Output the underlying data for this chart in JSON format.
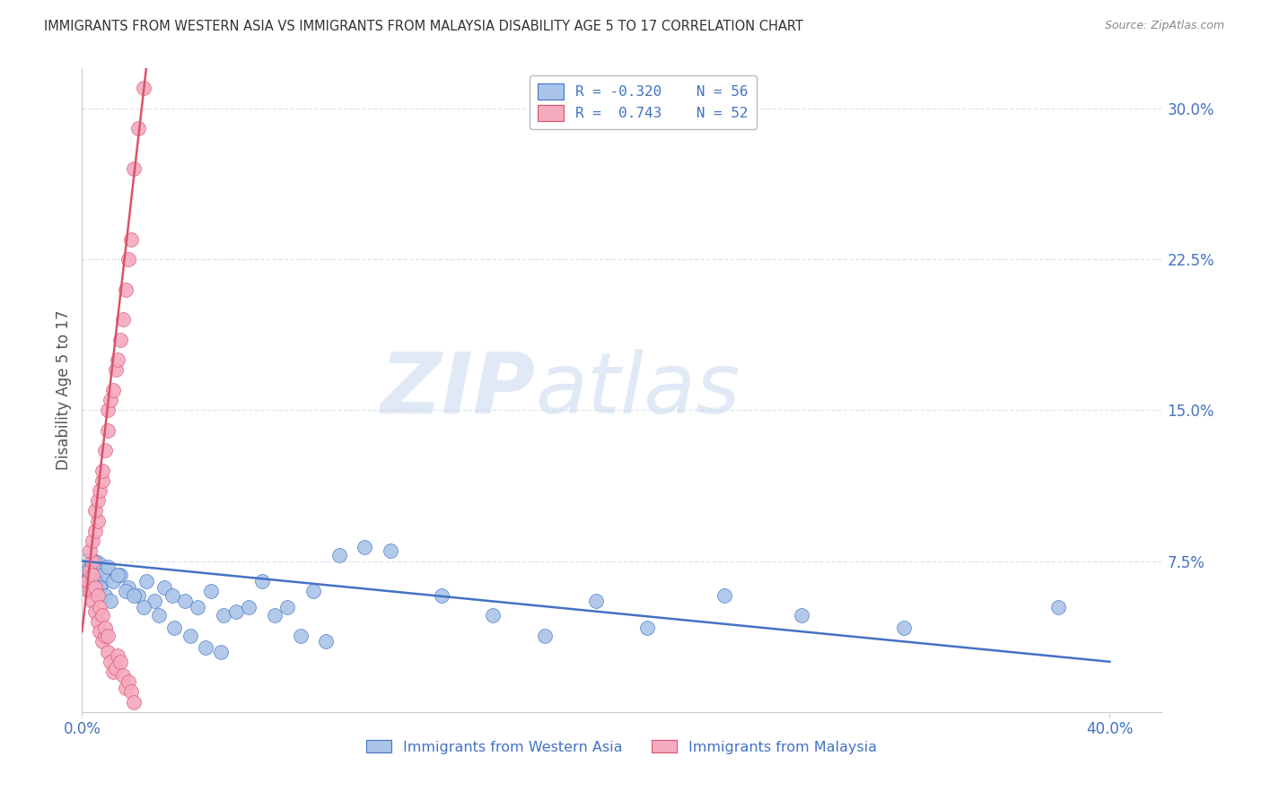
{
  "title": "IMMIGRANTS FROM WESTERN ASIA VS IMMIGRANTS FROM MALAYSIA DISABILITY AGE 5 TO 17 CORRELATION CHART",
  "source": "Source: ZipAtlas.com",
  "ylabel": "Disability Age 5 to 17",
  "ylabel_right_ticks": [
    "30.0%",
    "22.5%",
    "15.0%",
    "7.5%"
  ],
  "ylabel_right_vals": [
    0.3,
    0.225,
    0.15,
    0.075
  ],
  "xlim": [
    0.0,
    0.42
  ],
  "ylim": [
    0.0,
    0.32
  ],
  "legend_blue_R": "-0.320",
  "legend_blue_N": "56",
  "legend_pink_R": "0.743",
  "legend_pink_N": "52",
  "blue_color": "#aac4e8",
  "pink_color": "#f5aabf",
  "blue_line_color": "#4472c4",
  "pink_line_color": "#d9536a",
  "watermark_zip": "ZIP",
  "watermark_atlas": "atlas",
  "grid_color": "#dde5f0",
  "right_tick_color": "#4472c4",
  "title_color": "#333333",
  "blue_scatter_x": [
    0.002,
    0.003,
    0.004,
    0.003,
    0.005,
    0.006,
    0.004,
    0.008,
    0.01,
    0.012,
    0.015,
    0.018,
    0.022,
    0.025,
    0.028,
    0.032,
    0.035,
    0.04,
    0.045,
    0.05,
    0.055,
    0.06,
    0.07,
    0.08,
    0.09,
    0.1,
    0.11,
    0.12,
    0.14,
    0.16,
    0.18,
    0.2,
    0.22,
    0.25,
    0.28,
    0.32,
    0.38,
    0.002,
    0.003,
    0.005,
    0.007,
    0.009,
    0.011,
    0.014,
    0.017,
    0.02,
    0.024,
    0.03,
    0.036,
    0.042,
    0.048,
    0.054,
    0.065,
    0.075,
    0.085,
    0.095
  ],
  "blue_scatter_y": [
    0.065,
    0.07,
    0.068,
    0.072,
    0.075,
    0.07,
    0.065,
    0.068,
    0.072,
    0.065,
    0.068,
    0.062,
    0.058,
    0.065,
    0.055,
    0.062,
    0.058,
    0.055,
    0.052,
    0.06,
    0.048,
    0.05,
    0.065,
    0.052,
    0.06,
    0.078,
    0.082,
    0.08,
    0.058,
    0.048,
    0.038,
    0.055,
    0.042,
    0.058,
    0.048,
    0.042,
    0.052,
    0.07,
    0.068,
    0.065,
    0.062,
    0.058,
    0.055,
    0.068,
    0.06,
    0.058,
    0.052,
    0.048,
    0.042,
    0.038,
    0.032,
    0.03,
    0.052,
    0.048,
    0.038,
    0.035
  ],
  "pink_scatter_x": [
    0.002,
    0.003,
    0.004,
    0.003,
    0.004,
    0.005,
    0.006,
    0.005,
    0.006,
    0.007,
    0.008,
    0.008,
    0.009,
    0.01,
    0.01,
    0.011,
    0.012,
    0.013,
    0.014,
    0.015,
    0.016,
    0.017,
    0.018,
    0.019,
    0.02,
    0.022,
    0.024,
    0.003,
    0.004,
    0.005,
    0.006,
    0.007,
    0.008,
    0.009,
    0.01,
    0.011,
    0.012,
    0.013,
    0.014,
    0.015,
    0.016,
    0.017,
    0.018,
    0.019,
    0.02,
    0.004,
    0.005,
    0.006,
    0.007,
    0.008,
    0.009,
    0.01
  ],
  "pink_scatter_y": [
    0.065,
    0.07,
    0.075,
    0.08,
    0.085,
    0.09,
    0.095,
    0.1,
    0.105,
    0.11,
    0.115,
    0.12,
    0.13,
    0.14,
    0.15,
    0.155,
    0.16,
    0.17,
    0.175,
    0.185,
    0.195,
    0.21,
    0.225,
    0.235,
    0.27,
    0.29,
    0.31,
    0.06,
    0.055,
    0.05,
    0.045,
    0.04,
    0.035,
    0.038,
    0.03,
    0.025,
    0.02,
    0.022,
    0.028,
    0.025,
    0.018,
    0.012,
    0.015,
    0.01,
    0.005,
    0.068,
    0.062,
    0.058,
    0.052,
    0.048,
    0.042,
    0.038
  ],
  "blue_trendline_x": [
    0.0,
    0.4
  ],
  "blue_trendline_y": [
    0.075,
    0.025
  ],
  "pink_trendline_x": [
    0.0,
    0.025
  ],
  "pink_trendline_y": [
    0.04,
    0.32
  ]
}
